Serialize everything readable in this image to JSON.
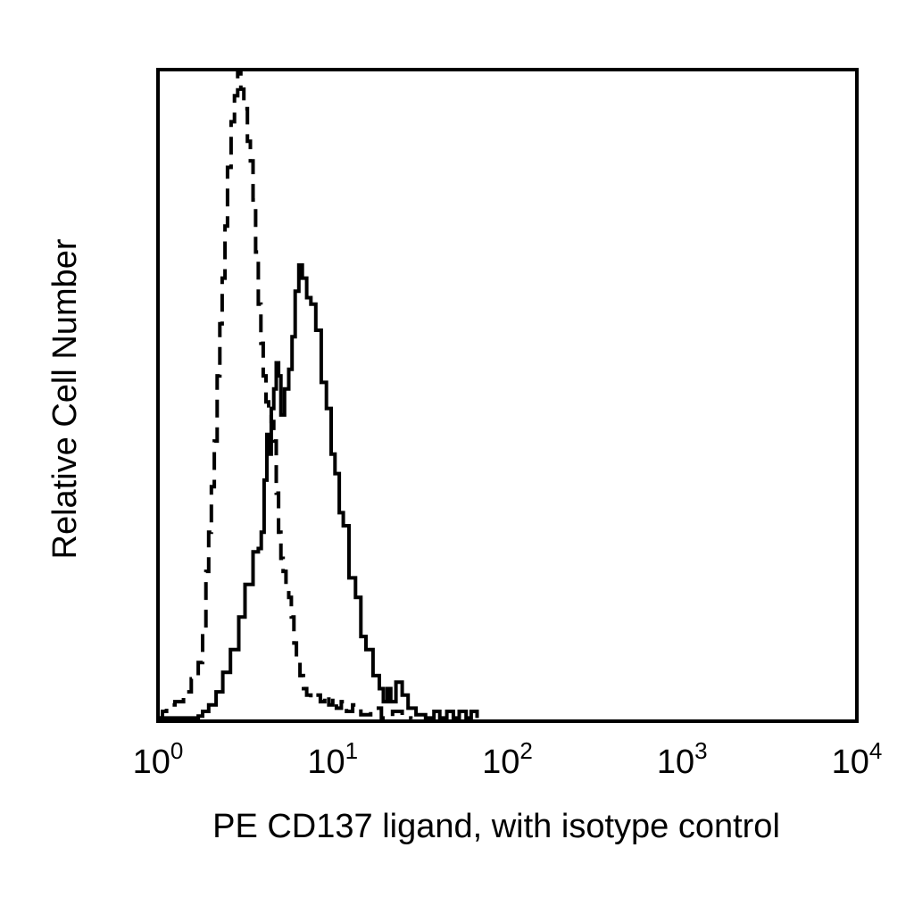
{
  "chart_data": {
    "type": "line",
    "xlabel": "PE CD137 ligand, with isotype control",
    "ylabel": "Relative Cell Number",
    "x_scale": "log",
    "xlim": [
      1,
      10000
    ],
    "ylim": [
      0,
      100
    ],
    "x_ticks": [
      {
        "value": 1,
        "base": "10",
        "exp": "0"
      },
      {
        "value": 10,
        "base": "10",
        "exp": "1"
      },
      {
        "value": 100,
        "base": "10",
        "exp": "2"
      },
      {
        "value": 1000,
        "base": "10",
        "exp": "3"
      },
      {
        "value": 10000,
        "base": "10",
        "exp": "4"
      }
    ],
    "grid": false,
    "legend": false,
    "series": [
      {
        "style": "solid",
        "color": "#000000",
        "points": [
          [
            1.02,
            0.5
          ],
          [
            1.5,
            0.5
          ],
          [
            1.7,
            0.8
          ],
          [
            1.8,
            1.5
          ],
          [
            1.95,
            2.5
          ],
          [
            2.15,
            4.5
          ],
          [
            2.35,
            7.5
          ],
          [
            2.6,
            11
          ],
          [
            2.9,
            16
          ],
          [
            3.15,
            21
          ],
          [
            3.5,
            26
          ],
          [
            3.75,
            26.5
          ],
          [
            3.9,
            29
          ],
          [
            4.05,
            37
          ],
          [
            4.2,
            44
          ],
          [
            4.35,
            41
          ],
          [
            4.45,
            48
          ],
          [
            4.6,
            51
          ],
          [
            4.75,
            55
          ],
          [
            4.9,
            53
          ],
          [
            5.05,
            47
          ],
          [
            5.3,
            51
          ],
          [
            5.6,
            54
          ],
          [
            5.85,
            59
          ],
          [
            6.1,
            66
          ],
          [
            6.4,
            70
          ],
          [
            6.7,
            68
          ],
          [
            7.1,
            65
          ],
          [
            7.5,
            64
          ],
          [
            8.0,
            60
          ],
          [
            8.6,
            52
          ],
          [
            9.2,
            48
          ],
          [
            9.8,
            41
          ],
          [
            10.3,
            38
          ],
          [
            10.9,
            32
          ],
          [
            11.5,
            30
          ],
          [
            12.4,
            22
          ],
          [
            13.5,
            19
          ],
          [
            14.5,
            13
          ],
          [
            15.5,
            11
          ],
          [
            17,
            7
          ],
          [
            18.5,
            5
          ],
          [
            19.5,
            3
          ],
          [
            20.5,
            5
          ],
          [
            21.5,
            3
          ],
          [
            23,
            6
          ],
          [
            25,
            4
          ],
          [
            27,
            2
          ],
          [
            30,
            1
          ],
          [
            34,
            0.5
          ],
          [
            38,
            1.5
          ],
          [
            41,
            0.5
          ],
          [
            45,
            1.5
          ],
          [
            49,
            0.5
          ],
          [
            53,
            1.5
          ],
          [
            58,
            0.5
          ],
          [
            62,
            1.5
          ],
          [
            67,
            0.5
          ]
        ]
      },
      {
        "style": "dashed",
        "color": "#000000",
        "points": [
          [
            1.0,
            0.5
          ],
          [
            1.06,
            1.5
          ],
          [
            1.12,
            2.5
          ],
          [
            1.25,
            3
          ],
          [
            1.4,
            4.5
          ],
          [
            1.55,
            6.5
          ],
          [
            1.7,
            9
          ],
          [
            1.8,
            14
          ],
          [
            1.88,
            23
          ],
          [
            1.95,
            29
          ],
          [
            2.02,
            36
          ],
          [
            2.1,
            43
          ],
          [
            2.18,
            53
          ],
          [
            2.26,
            61
          ],
          [
            2.33,
            68
          ],
          [
            2.42,
            76
          ],
          [
            2.5,
            85
          ],
          [
            2.62,
            92
          ],
          [
            2.74,
            96
          ],
          [
            2.86,
            100
          ],
          [
            2.98,
            97
          ],
          [
            3.1,
            94
          ],
          [
            3.25,
            89
          ],
          [
            3.38,
            86
          ],
          [
            3.5,
            80
          ],
          [
            3.62,
            72
          ],
          [
            3.75,
            64
          ],
          [
            3.88,
            58
          ],
          [
            4.0,
            53
          ],
          [
            4.15,
            49
          ],
          [
            4.3,
            47
          ],
          [
            4.45,
            46
          ],
          [
            4.6,
            43
          ],
          [
            4.75,
            35
          ],
          [
            4.9,
            29
          ],
          [
            5.05,
            25
          ],
          [
            5.2,
            23
          ],
          [
            5.4,
            21
          ],
          [
            5.6,
            19
          ],
          [
            5.8,
            16
          ],
          [
            6.0,
            12
          ],
          [
            6.2,
            9
          ],
          [
            6.5,
            7
          ],
          [
            6.8,
            5
          ],
          [
            7.1,
            4
          ],
          [
            7.5,
            3.5
          ],
          [
            8.0,
            4
          ],
          [
            8.5,
            3
          ],
          [
            9.0,
            4
          ],
          [
            9.5,
            2.5
          ],
          [
            10.0,
            3.5
          ],
          [
            10.5,
            2
          ],
          [
            11.2,
            3
          ],
          [
            12,
            1.5
          ],
          [
            13,
            2.5
          ],
          [
            14.5,
            1
          ],
          [
            16.5,
            2
          ],
          [
            19,
            0.5
          ],
          [
            22,
            1.5
          ],
          [
            25,
            0.5
          ],
          [
            28,
            0.3
          ]
        ]
      }
    ]
  }
}
